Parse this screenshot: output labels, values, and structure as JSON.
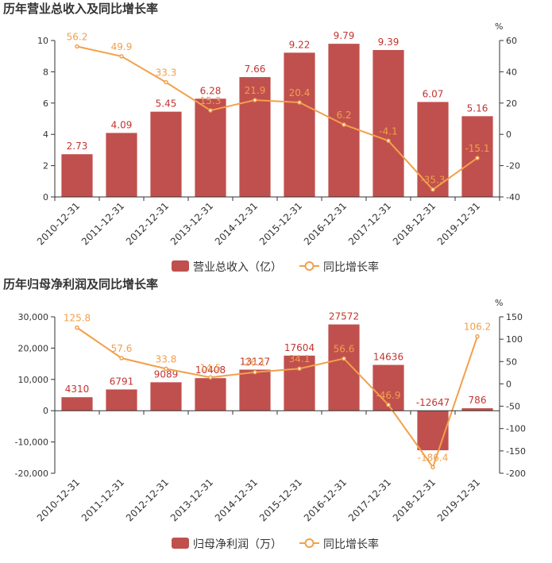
{
  "colors": {
    "bar": "#c0504d",
    "line": "#f3a04a",
    "bar_label": "#c23531",
    "line_label": "#f0a04b"
  },
  "chart_data": [
    {
      "type": "bar",
      "title": "历年营业总收入及同比增长率",
      "categories": [
        "2010-12-31",
        "2011-12-31",
        "2012-12-31",
        "2013-12-31",
        "2014-12-31",
        "2015-12-31",
        "2016-12-31",
        "2017-12-31",
        "2018-12-31",
        "2019-12-31"
      ],
      "series": [
        {
          "name": "营业总收入（亿）",
          "type": "bar",
          "axis": "left",
          "values": [
            2.73,
            4.09,
            5.45,
            6.28,
            7.66,
            9.22,
            9.79,
            9.39,
            6.07,
            5.16
          ],
          "labels": [
            "2.73",
            "4.09",
            "5.45",
            "6.28",
            "7.66",
            "9.22",
            "9.79",
            "9.39",
            "6.07",
            "5.16"
          ]
        },
        {
          "name": "同比增长率",
          "type": "line",
          "axis": "right",
          "values": [
            56.2,
            49.9,
            33.3,
            15.3,
            21.9,
            20.4,
            6.2,
            -4.1,
            -35.3,
            -15.1
          ],
          "labels": [
            "56.2",
            "49.9",
            "33.3",
            "15.3",
            "21.9",
            "20.4",
            "6.2",
            "-4.1",
            "-35.3",
            "-15.1"
          ]
        }
      ],
      "ylim_left": [
        0,
        10
      ],
      "yticks_left": [
        "10",
        "8",
        "6",
        "4",
        "2",
        "0"
      ],
      "ylim_right": [
        -40,
        60
      ],
      "yticks_right": [
        "60",
        "40",
        "20",
        "0",
        "-20",
        "-40"
      ],
      "right_unit": "%",
      "legend": [
        "营业总收入（亿）",
        "同比增长率"
      ],
      "legend_position": "bottom",
      "grid": false
    },
    {
      "type": "bar",
      "title": "历年归母净利润及同比增长率",
      "categories": [
        "2010-12-31",
        "2011-12-31",
        "2012-12-31",
        "2013-12-31",
        "2014-12-31",
        "2015-12-31",
        "2016-12-31",
        "2017-12-31",
        "2018-12-31",
        "2019-12-31"
      ],
      "series": [
        {
          "name": "归母净利润（万）",
          "type": "bar",
          "axis": "left",
          "values": [
            4310,
            6791,
            9089,
            10408,
            13127,
            17604,
            27572,
            14636,
            -12647,
            786
          ],
          "labels": [
            "4310",
            "6791",
            "9089",
            "10408",
            "13127",
            "17604",
            "27572",
            "14636",
            "-12647",
            "786"
          ]
        },
        {
          "name": "同比增长率",
          "type": "line",
          "axis": "right",
          "values": [
            125.8,
            57.6,
            33.8,
            14.5,
            26.1,
            34.1,
            56.6,
            -46.9,
            -186.4,
            106.2
          ],
          "labels": [
            "125.8",
            "57.6",
            "33.8",
            "14.5",
            "26.1",
            "34.1",
            "56.6",
            "-46.9",
            "-186.4",
            "106.2"
          ]
        }
      ],
      "ylim_left": [
        -20000,
        30000
      ],
      "yticks_left": [
        "30,000",
        "20,000",
        "10,000",
        "0",
        "-10,000",
        "-20,000"
      ],
      "ylim_right": [
        -200,
        150
      ],
      "yticks_right": [
        "150",
        "100",
        "50",
        "0",
        "-50",
        "-100",
        "-150",
        "-200"
      ],
      "right_unit": "%",
      "legend": [
        "归母净利润（万）",
        "同比增长率"
      ],
      "legend_position": "bottom",
      "grid": false
    }
  ]
}
